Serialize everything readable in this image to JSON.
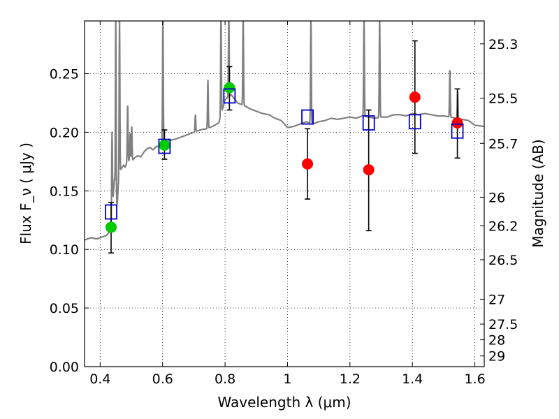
{
  "chart_data": {
    "type": "scatter",
    "xlabel": "Wavelength  λ (μm)",
    "ylabel": "Flux  F_ν  ( μJy )",
    "ylabel_right": "Magnitude (AB)",
    "xlim": [
      0.35,
      1.63
    ],
    "ylim": [
      0.0,
      0.295
    ],
    "grid": true,
    "x_ticks": [
      {
        "value": 0.4,
        "label": "0.4"
      },
      {
        "value": 0.6,
        "label": "0.6"
      },
      {
        "value": 0.8,
        "label": "0.8"
      },
      {
        "value": 1.0,
        "label": "1"
      },
      {
        "value": 1.2,
        "label": "1.2"
      },
      {
        "value": 1.4,
        "label": "1.4"
      },
      {
        "value": 1.6,
        "label": "1.6"
      }
    ],
    "y_ticks": [
      {
        "value": 0.0,
        "label": "0.00"
      },
      {
        "value": 0.05,
        "label": "0.05"
      },
      {
        "value": 0.1,
        "label": "0.10"
      },
      {
        "value": 0.15,
        "label": "0.15"
      },
      {
        "value": 0.2,
        "label": "0.20"
      },
      {
        "value": 0.25,
        "label": "0.25"
      }
    ],
    "y2_ticks": [
      {
        "value": 25.3,
        "label": "25.3"
      },
      {
        "value": 25.5,
        "label": "25.5"
      },
      {
        "value": 25.7,
        "label": "25.7"
      },
      {
        "value": 26.0,
        "label": "26"
      },
      {
        "value": 26.2,
        "label": "26.2"
      },
      {
        "value": 26.5,
        "label": "26.5"
      },
      {
        "value": 27.0,
        "label": "27"
      },
      {
        "value": 27.5,
        "label": "27.5"
      },
      {
        "value": 28.0,
        "label": "28"
      },
      {
        "value": 29.0,
        "label": "29"
      }
    ],
    "model_spectrum": {
      "color": "#808080",
      "x": [
        0.35,
        0.37,
        0.39,
        0.41,
        0.42,
        0.43,
        0.437,
        0.44,
        0.443,
        0.446,
        0.448,
        0.452,
        0.455,
        0.458,
        0.462,
        0.466,
        0.47,
        0.475,
        0.48,
        0.485,
        0.49,
        0.5,
        0.51,
        0.52,
        0.53,
        0.54,
        0.55,
        0.56,
        0.57,
        0.58,
        0.59,
        0.6,
        0.62,
        0.64,
        0.66,
        0.68,
        0.7,
        0.72,
        0.74,
        0.76,
        0.78,
        0.8,
        0.82,
        0.84,
        0.86,
        0.88,
        0.9,
        0.92,
        0.94,
        0.96,
        0.98,
        1.0,
        1.02,
        1.04,
        1.06,
        1.08,
        1.1,
        1.12,
        1.14,
        1.16,
        1.18,
        1.2,
        1.22,
        1.24,
        1.26,
        1.28,
        1.3,
        1.32,
        1.34,
        1.36,
        1.38,
        1.4,
        1.42,
        1.44,
        1.46,
        1.48,
        1.5,
        1.52,
        1.54,
        1.56,
        1.58,
        1.6,
        1.63
      ],
      "y": [
        0.108,
        0.11,
        0.109,
        0.111,
        0.112,
        0.115,
        0.125,
        0.14,
        0.15,
        0.16,
        0.15,
        0.135,
        0.14,
        0.155,
        0.16,
        0.168,
        0.17,
        0.172,
        0.17,
        0.174,
        0.176,
        0.175,
        0.178,
        0.18,
        0.179,
        0.183,
        0.186,
        0.187,
        0.185,
        0.188,
        0.188,
        0.19,
        0.193,
        0.194,
        0.196,
        0.198,
        0.2,
        0.202,
        0.203,
        0.205,
        0.208,
        0.228,
        0.232,
        0.225,
        0.223,
        0.22,
        0.218,
        0.216,
        0.215,
        0.212,
        0.21,
        0.204,
        0.205,
        0.207,
        0.209,
        0.207,
        0.209,
        0.21,
        0.212,
        0.211,
        0.212,
        0.213,
        0.212,
        0.214,
        0.213,
        0.212,
        0.213,
        0.213,
        0.215,
        0.215,
        0.214,
        0.216,
        0.215,
        0.216,
        0.215,
        0.214,
        0.214,
        0.213,
        0.212,
        0.211,
        0.21,
        0.206,
        0.205
      ]
    },
    "emission_lines": [
      {
        "x": 0.438,
        "peak": 0.2
      },
      {
        "x": 0.45,
        "peak": 0.3
      },
      {
        "x": 0.462,
        "peak": 0.3
      },
      {
        "x": 0.488,
        "peak": 0.225
      },
      {
        "x": 0.496,
        "peak": 0.2
      },
      {
        "x": 0.501,
        "peak": 0.205
      },
      {
        "x": 0.601,
        "peak": 0.3
      },
      {
        "x": 0.705,
        "peak": 0.215
      },
      {
        "x": 0.745,
        "peak": 0.245
      },
      {
        "x": 0.787,
        "peak": 0.3
      },
      {
        "x": 0.812,
        "peak": 0.3
      },
      {
        "x": 0.858,
        "peak": 0.3
      },
      {
        "x": 1.075,
        "peak": 0.3
      },
      {
        "x": 1.245,
        "peak": 0.3
      },
      {
        "x": 1.295,
        "peak": 0.3
      },
      {
        "x": 1.52,
        "peak": 0.255
      },
      {
        "x": 1.545,
        "peak": 0.235
      }
    ],
    "series": [
      {
        "marker": "circle",
        "color": "#00cc00",
        "points": [
          {
            "x": 0.435,
            "y": 0.119,
            "err_lo": 0.097,
            "err_hi": 0.14
          },
          {
            "x": 0.606,
            "y": 0.189,
            "err_lo": 0.177,
            "err_hi": 0.202
          },
          {
            "x": 0.814,
            "y": 0.238,
            "err_lo": 0.219,
            "err_hi": 0.256
          }
        ]
      },
      {
        "marker": "circle",
        "color": "#ff0000",
        "points": [
          {
            "x": 1.064,
            "y": 0.173,
            "err_lo": 0.143,
            "err_hi": 0.203
          },
          {
            "x": 1.26,
            "y": 0.168,
            "err_lo": 0.116,
            "err_hi": 0.219
          },
          {
            "x": 1.408,
            "y": 0.23,
            "err_lo": 0.182,
            "err_hi": 0.278
          },
          {
            "x": 1.544,
            "y": 0.208,
            "err_lo": 0.178,
            "err_hi": 0.237
          }
        ]
      },
      {
        "marker": "square-open",
        "color": "#0000cc",
        "points": [
          {
            "x": 0.435,
            "y": 0.132
          },
          {
            "x": 0.606,
            "y": 0.188
          },
          {
            "x": 0.814,
            "y": 0.231
          },
          {
            "x": 1.064,
            "y": 0.213
          },
          {
            "x": 1.26,
            "y": 0.208
          },
          {
            "x": 1.408,
            "y": 0.209
          },
          {
            "x": 1.544,
            "y": 0.201
          }
        ]
      }
    ]
  }
}
